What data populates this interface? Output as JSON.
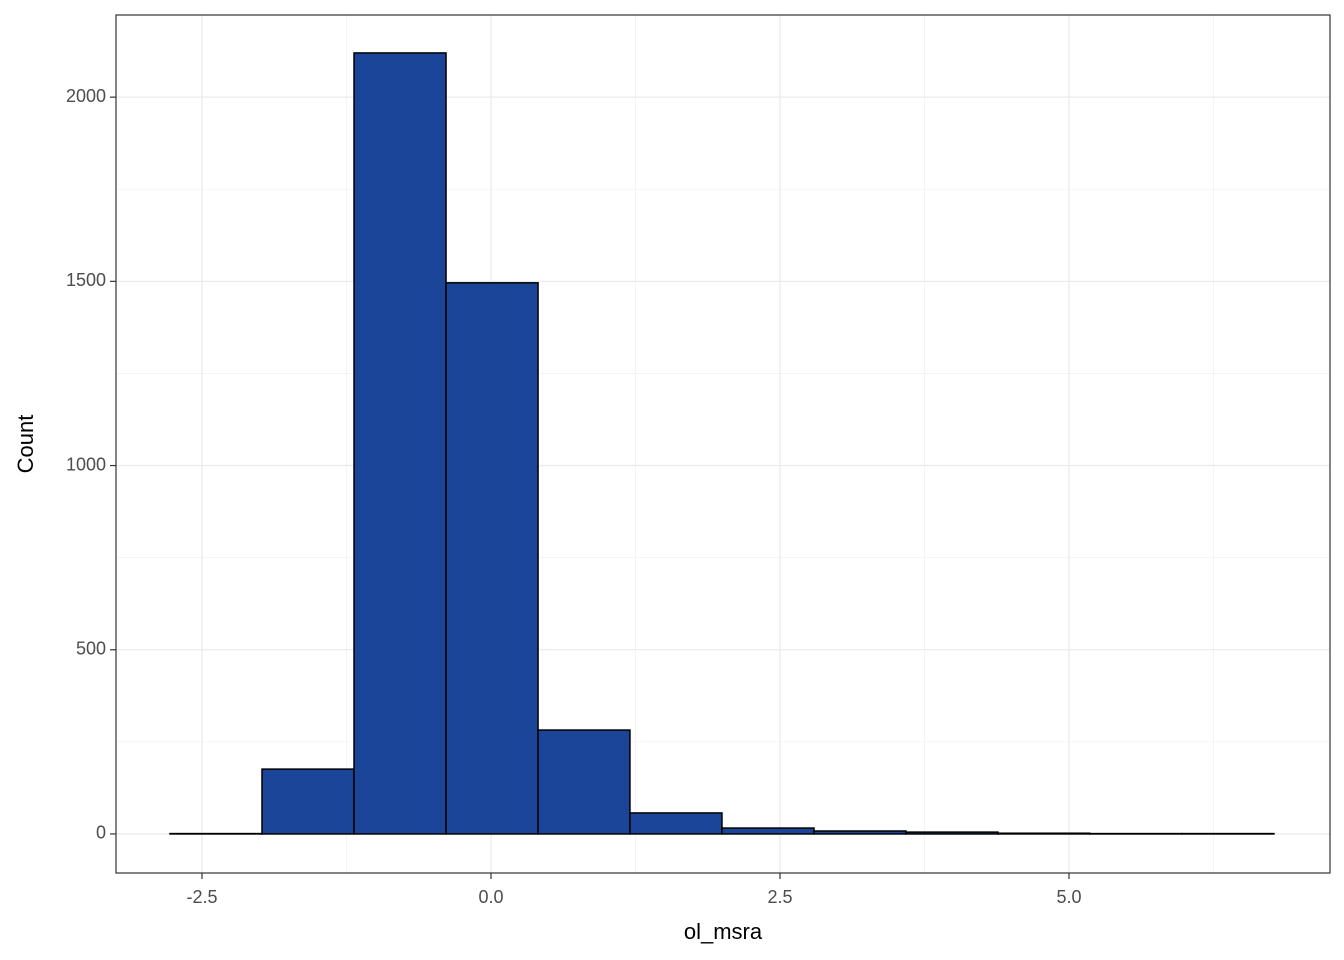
{
  "chart_data": {
    "type": "histogram",
    "x_label": "ol_msra",
    "y_label": "Count",
    "bins": [
      -2.777,
      -1.981,
      -1.185,
      -0.389,
      0.407,
      1.202,
      1.998,
      2.794,
      3.59,
      4.386,
      5.18,
      5.977,
      6.773
    ],
    "values": [
      1,
      176,
      2120,
      1496,
      282,
      57,
      16,
      8,
      5,
      2,
      1,
      1
    ],
    "color": "#1a4599",
    "edge_color": "#000000",
    "xlim": [
      -3.244,
      7.258
    ],
    "ylim": [
      -106,
      2223
    ],
    "xticks": [
      -2.5,
      {
        "value": 0,
        "label": "0.0"
      },
      2.5,
      {
        "value": 5,
        "label": "5.0"
      }
    ],
    "yticks": [
      0,
      500,
      1000,
      1500,
      2000
    ],
    "grid": true
  }
}
